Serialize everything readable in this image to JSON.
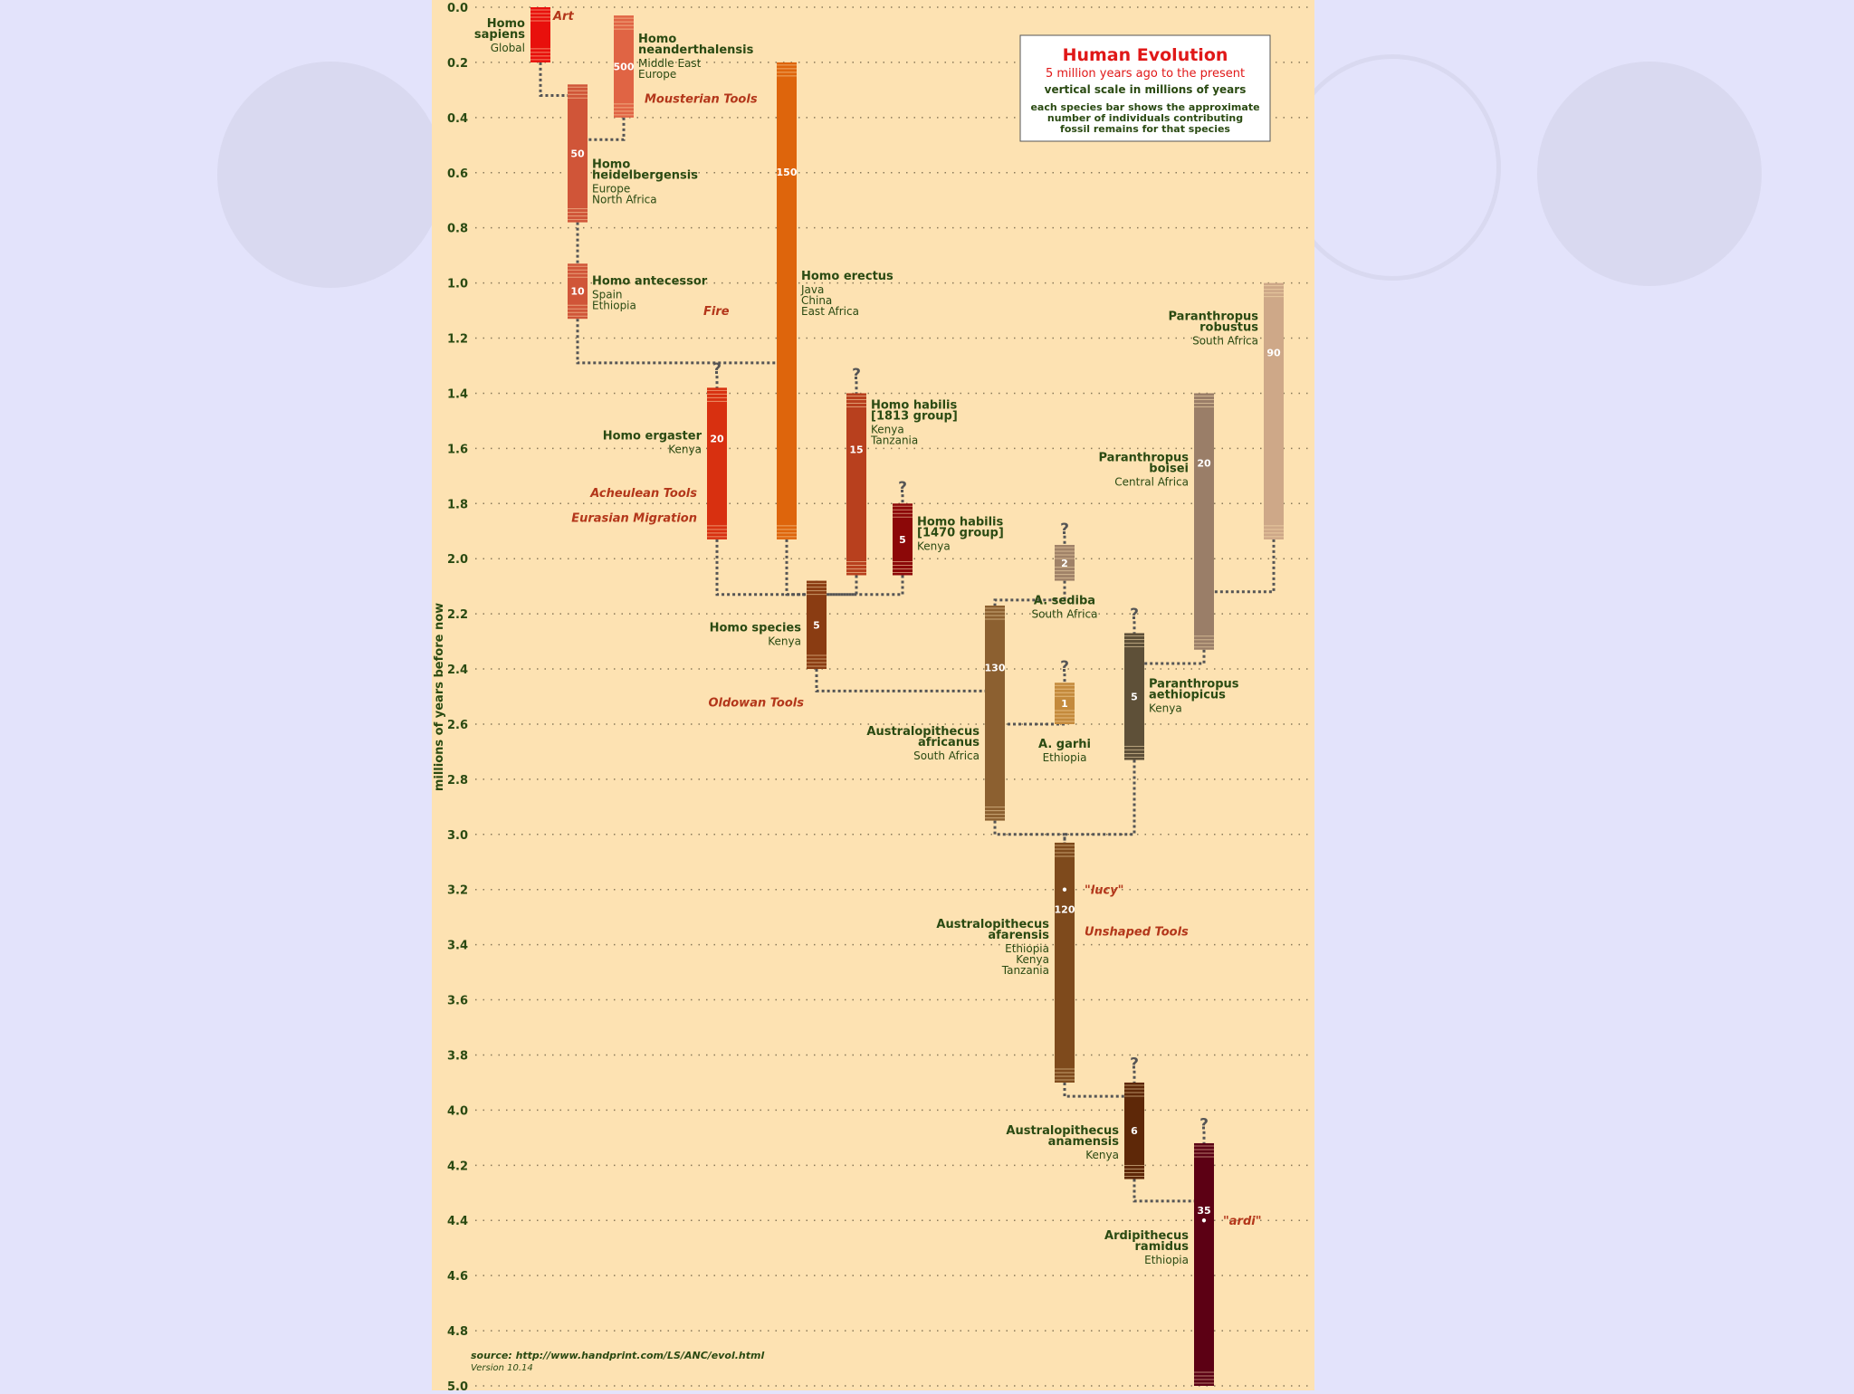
{
  "legend": {
    "title": "Human Evolution",
    "subtitle": "5 million years ago to the present",
    "scale_note": "vertical scale in millions of years",
    "bar_note": [
      "each species bar shows the approximate",
      "number of individuals contributing",
      "fossil remains for that species"
    ]
  },
  "source": {
    "text": "source: http://www.handprint.com/LS/ANC/evol.html",
    "version": "Version 10.14"
  },
  "diagram": {
    "y_axis_label": "millions of years before now",
    "y_ticks": [
      "0.0",
      "0.2",
      "0.4",
      "0.6",
      "0.8",
      "1.0",
      "1.2",
      "1.4",
      "1.6",
      "1.8",
      "2.0",
      "2.2",
      "2.4",
      "2.6",
      "2.8",
      "3.0",
      "3.2",
      "3.4",
      "3.6",
      "3.8",
      "4.0",
      "4.2",
      "4.4",
      "4.6",
      "4.8",
      "5.0"
    ],
    "species": [
      {
        "id": "sapiens",
        "name": [
          "Homo",
          "sapiens"
        ],
        "region": [
          "Global"
        ],
        "start": 0.0,
        "end": 0.2,
        "count": "",
        "color": "#e8100c",
        "col": 597,
        "label_side": "left"
      },
      {
        "id": "neanderthalensis",
        "name": [
          "Homo",
          "neanderthalensis"
        ],
        "region": [
          "Middle East",
          "Europe"
        ],
        "start": 0.03,
        "end": 0.4,
        "count": "500",
        "color": "#e06444",
        "col": 689,
        "label_side": "right"
      },
      {
        "id": "heidelbergensis",
        "name": [
          "Homo",
          "heidelbergensis"
        ],
        "region": [
          "Europe",
          "North Africa"
        ],
        "start": 0.28,
        "end": 0.78,
        "count": "50",
        "color": "#d05538",
        "col": 638,
        "label_side": "right"
      },
      {
        "id": "antecessor",
        "name": [
          "Homo antecessor"
        ],
        "region": [
          "Spain",
          "Ethiopia"
        ],
        "start": 0.93,
        "end": 1.13,
        "count": "10",
        "color": "#d05538",
        "col": 638,
        "label_side": "right"
      },
      {
        "id": "erectus",
        "name": [
          "Homo erectus"
        ],
        "region": [
          "Java",
          "China",
          "East Africa"
        ],
        "start": 0.2,
        "end": 1.93,
        "count": "150",
        "color": "#de650c",
        "col": 869,
        "label_side": "right"
      },
      {
        "id": "ergaster",
        "name": [
          "Homo ergaster"
        ],
        "region": [
          "Kenya"
        ],
        "start": 1.38,
        "end": 1.93,
        "count": "20",
        "color": "#d83010",
        "col": 792,
        "label_side": "left"
      },
      {
        "id": "habilis1813",
        "name": [
          "Homo habilis",
          "[1813 group]"
        ],
        "region": [
          "Kenya",
          "Tanzania"
        ],
        "start": 1.4,
        "end": 2.06,
        "count": "15",
        "color": "#b8401e",
        "col": 946,
        "label_side": "right"
      },
      {
        "id": "habilis1470",
        "name": [
          "Homo habilis",
          "[1470 group]"
        ],
        "region": [
          "Kenya"
        ],
        "start": 1.8,
        "end": 2.06,
        "count": "5",
        "color": "#8c0808",
        "col": 997,
        "label_side": "right"
      },
      {
        "id": "homo_sp",
        "name": [
          "Homo species"
        ],
        "region": [
          "Kenya"
        ],
        "start": 2.08,
        "end": 2.4,
        "count": "5",
        "color": "#8a3c12",
        "col": 902,
        "label_side": "left"
      },
      {
        "id": "sediba",
        "name": [
          "A. sediba"
        ],
        "region": [
          "South Africa"
        ],
        "start": 1.95,
        "end": 2.08,
        "count": "2",
        "color": "#a08268",
        "col": 1176,
        "label_side": "below"
      },
      {
        "id": "garhi",
        "name": [
          "A. garhi"
        ],
        "region": [
          "Ethiopia"
        ],
        "start": 2.45,
        "end": 2.6,
        "count": "1",
        "color": "#c48a3c",
        "col": 1176,
        "label_side": "below"
      },
      {
        "id": "africanus",
        "name": [
          "Australopithecus",
          "africanus"
        ],
        "region": [
          "South Africa"
        ],
        "start": 2.17,
        "end": 2.95,
        "count": "130",
        "color": "#8c6030",
        "col": 1099,
        "label_side": "left"
      },
      {
        "id": "aethiopicus",
        "name": [
          "Paranthropus",
          "aethiopicus"
        ],
        "region": [
          "Kenya"
        ],
        "start": 2.27,
        "end": 2.73,
        "count": "5",
        "color": "#5e5038",
        "col": 1253,
        "label_side": "right"
      },
      {
        "id": "boisei",
        "name": [
          "Paranthropus",
          "boisei"
        ],
        "region": [
          "Central Africa"
        ],
        "start": 1.4,
        "end": 2.33,
        "count": "20",
        "color": "#9a7e68",
        "col": 1330,
        "label_side": "left"
      },
      {
        "id": "robustus",
        "name": [
          "Paranthropus",
          "robustus"
        ],
        "region": [
          "South Africa"
        ],
        "start": 1.0,
        "end": 1.93,
        "count": "90",
        "color": "#cea888",
        "col": 1407,
        "label_side": "left"
      },
      {
        "id": "afarensis",
        "name": [
          "Australopithecus",
          "afarensis"
        ],
        "region": [
          "Ethiopia",
          "Kenya",
          "Tanzania"
        ],
        "start": 3.03,
        "end": 3.9,
        "count": "120",
        "color": "#7e4a1c",
        "col": 1176,
        "label_side": "left"
      },
      {
        "id": "anamensis",
        "name": [
          "Australopithecus",
          "anamensis"
        ],
        "region": [
          "Kenya"
        ],
        "start": 3.9,
        "end": 4.25,
        "count": "6",
        "color": "#5e2808",
        "col": 1253,
        "label_side": "left"
      },
      {
        "id": "ramidus",
        "name": [
          "Ardipithecus",
          "ramidus"
        ],
        "region": [
          "Ethiopia"
        ],
        "start": 4.12,
        "end": 5.0,
        "count": "35",
        "color": "#5c0014",
        "col": 1330,
        "label_side": "left"
      }
    ],
    "events": [
      {
        "text": "Art",
        "time": 0.03
      },
      {
        "text": "Mousterian Tools",
        "time": 0.33
      },
      {
        "text": "Fire",
        "time": 1.1
      },
      {
        "text": "Acheulean Tools",
        "time": 1.76
      },
      {
        "text": "Eurasian Migration",
        "time": 1.85
      },
      {
        "text": "Oldowan Tools",
        "time": 2.52
      },
      {
        "text": "\"lucy\"",
        "time": 3.2
      },
      {
        "text": "Unshaped Tools",
        "time": 3.35
      },
      {
        "text": "\"ardi\"",
        "time": 4.4
      }
    ],
    "question_marks": [
      "?",
      "?",
      "?",
      "?",
      "?",
      "?",
      "?",
      "?"
    ]
  }
}
